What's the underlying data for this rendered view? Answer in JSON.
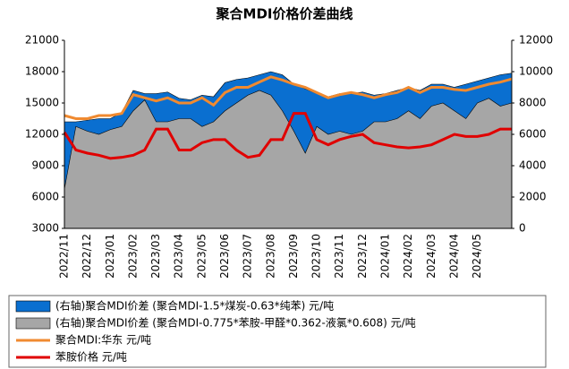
{
  "chart_data": {
    "type": "line",
    "title": "聚合MDI价格价差曲线",
    "categories": [
      "2022/11",
      null,
      "2022/12",
      null,
      "2023/01",
      null,
      "2023/02",
      null,
      "2023/03",
      null,
      "2023/04",
      null,
      "2023/05",
      null,
      "2023/06",
      null,
      "2023/07",
      null,
      "2023/08",
      null,
      "2023/09",
      null,
      "2023/10",
      null,
      "2023/11",
      null,
      "2023/12",
      null,
      "2024/01",
      null,
      "2024/02",
      null,
      "2024/03",
      null,
      "2024/04",
      null,
      "2024/05",
      null,
      null,
      null
    ],
    "ylim": [
      3000,
      21000
    ],
    "yticks": [
      3000,
      6000,
      9000,
      12000,
      15000,
      18000,
      21000
    ],
    "y2lim": [
      0,
      12000
    ],
    "y2ticks": [
      0,
      2000,
      4000,
      6000,
      8000,
      10000,
      12000
    ],
    "series": [
      {
        "name": "(右轴)聚合MDI价差 (聚合MDI-1.5*煤炭-0.63*纯苯) 元/吨",
        "color": "#0a6fd0",
        "axis": "y2",
        "area": true,
        "values": [
          6800,
          6800,
          6900,
          7000,
          7000,
          7400,
          8800,
          8600,
          8600,
          8700,
          8300,
          8200,
          8500,
          8400,
          9300,
          9500,
          9600,
          9800,
          10000,
          9800,
          9200,
          8900,
          8600,
          8400,
          8600,
          8600,
          8700,
          8500,
          8600,
          8800,
          9000,
          8800,
          9200,
          9200,
          9000,
          9200,
          9400,
          9600,
          9800,
          9900
        ]
      },
      {
        "name": "(右轴)聚合MDI价差 (聚合MDI-0.775*苯胺-甲醛*0.362-液氯*0.608) 元/吨",
        "color": "#a6a6a6",
        "axis": "y2",
        "area": true,
        "values": [
          2500,
          6500,
          6200,
          6000,
          6300,
          6500,
          7500,
          8200,
          6800,
          6800,
          7000,
          7000,
          6500,
          6800,
          7500,
          8000,
          8500,
          8800,
          8500,
          7500,
          6200,
          4800,
          6500,
          6000,
          6200,
          6000,
          6200,
          6800,
          6800,
          7000,
          7500,
          7000,
          7800,
          8000,
          7500,
          7000,
          8000,
          8300,
          7800,
          8000
        ]
      },
      {
        "name": "聚合MDI:华东 元/吨",
        "color": "#f08a30",
        "values": [
          13800,
          13500,
          13500,
          13800,
          13800,
          14000,
          15800,
          15500,
          15200,
          15500,
          15000,
          15000,
          15500,
          14800,
          16000,
          16500,
          16500,
          17000,
          17500,
          17200,
          16800,
          16500,
          16000,
          15500,
          15800,
          16000,
          15800,
          15500,
          15800,
          16000,
          16500,
          16000,
          16500,
          16500,
          16300,
          16200,
          16500,
          16800,
          17000,
          17300
        ]
      },
      {
        "name": "苯胺价格 元/吨",
        "color": "#e00000",
        "values": [
          12200,
          10500,
          10200,
          10000,
          9700,
          9800,
          10000,
          10500,
          12500,
          12500,
          10500,
          10500,
          11200,
          11500,
          11500,
          10500,
          9800,
          10000,
          11500,
          11500,
          14000,
          14000,
          11500,
          11000,
          11500,
          11800,
          12000,
          11200,
          11000,
          10800,
          10700,
          10800,
          11000,
          11500,
          12000,
          11800,
          11800,
          12000,
          12500,
          12500
        ]
      }
    ]
  }
}
